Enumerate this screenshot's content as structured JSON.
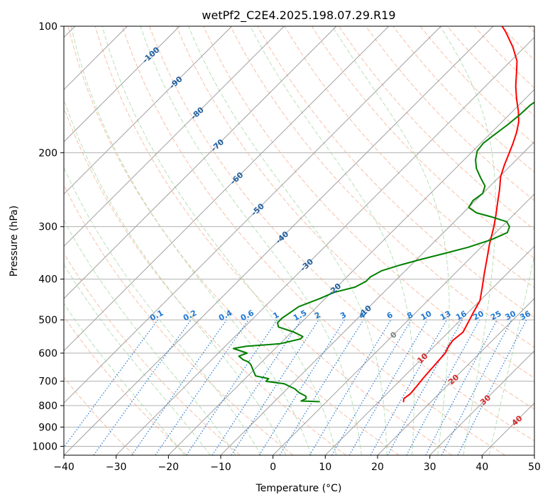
{
  "chart_data": {
    "type": "line",
    "title": "wetPf2_C2E4.2025.198.07.29.R19",
    "xlabel": "Temperature (°C)",
    "ylabel": "Pressure (hPa)",
    "xlim": [
      -40,
      50
    ],
    "ylim": [
      1050,
      100
    ],
    "y_scale": "log",
    "grid": true,
    "x_ticks": [
      -40,
      -30,
      -20,
      -10,
      0,
      10,
      20,
      30,
      40,
      50
    ],
    "y_ticks": [
      100,
      200,
      300,
      400,
      500,
      600,
      700,
      800,
      900,
      1000
    ],
    "colors": {
      "temperature": "#ff0000",
      "dewpoint": "#008000",
      "isotherm": "#a0a0a0",
      "dry_adiabat": "#f4a582",
      "moist_adiabat": "#a6d8a6",
      "mixing_ratio": "#1f77d4",
      "isotherm_label_negative": "#1f5fa0",
      "isotherm_label_positive": "#d62728"
    },
    "isotherm_labels": [
      {
        "t": -100,
        "p": 117,
        "text": "-100"
      },
      {
        "t": -90,
        "p": 136,
        "text": "-90"
      },
      {
        "t": -80,
        "p": 161,
        "text": "-80"
      },
      {
        "t": -70,
        "p": 192,
        "text": "-70"
      },
      {
        "t": -60,
        "p": 230,
        "text": "-60"
      },
      {
        "t": -50,
        "p": 273,
        "text": "-50"
      },
      {
        "t": -40,
        "p": 318,
        "text": "-40"
      },
      {
        "t": -30,
        "p": 370,
        "text": "-30"
      },
      {
        "t": -20,
        "p": 423,
        "text": "-20"
      },
      {
        "t": -10,
        "p": 477,
        "text": "-10"
      },
      {
        "t": 0,
        "p": 543,
        "text": "0"
      },
      {
        "t": 10,
        "p": 617,
        "text": "10"
      },
      {
        "t": 20,
        "p": 693,
        "text": "20"
      },
      {
        "t": 30,
        "p": 775,
        "text": "30"
      },
      {
        "t": 40,
        "p": 868,
        "text": "40"
      }
    ],
    "mixing_ratio_labels": [
      "0.1",
      "0.2",
      "0.4",
      "0.6",
      "1",
      "1.5",
      "2",
      "3",
      "4",
      "6",
      "8",
      "10",
      "13",
      "16",
      "20",
      "25",
      "30",
      "36"
    ],
    "series": [
      {
        "name": "Temperature",
        "points": [
          [
            14.8,
            785
          ],
          [
            14.2,
            770
          ],
          [
            14.5,
            750
          ],
          [
            14.3,
            720
          ],
          [
            14.0,
            690
          ],
          [
            13.8,
            660
          ],
          [
            13.6,
            630
          ],
          [
            13.4,
            600
          ],
          [
            12.8,
            580
          ],
          [
            12.4,
            560
          ],
          [
            12.8,
            535
          ],
          [
            12.0,
            510
          ],
          [
            11.0,
            480
          ],
          [
            10.0,
            450
          ],
          [
            8.0,
            420
          ],
          [
            5.8,
            390
          ],
          [
            3.5,
            360
          ],
          [
            1.0,
            330
          ],
          [
            -1.5,
            300
          ],
          [
            -3.5,
            280
          ],
          [
            -5.5,
            262
          ],
          [
            -7.5,
            245
          ],
          [
            -9.8,
            228
          ],
          [
            -11.3,
            214
          ],
          [
            -12.5,
            202
          ],
          [
            -13.8,
            190
          ],
          [
            -15.2,
            179
          ],
          [
            -16.8,
            169
          ],
          [
            -19.0,
            159
          ],
          [
            -21.6,
            149
          ],
          [
            -24.2,
            139
          ],
          [
            -26.4,
            130
          ],
          [
            -28.8,
            121
          ],
          [
            -32.3,
            112
          ],
          [
            -36.6,
            103
          ],
          [
            -38.3,
            100
          ]
        ]
      },
      {
        "name": "Dewpoint",
        "points": [
          [
            -1.3,
            783
          ],
          [
            -5.0,
            780
          ],
          [
            -4.5,
            770
          ],
          [
            -5.0,
            760
          ],
          [
            -7.0,
            745
          ],
          [
            -8.5,
            730
          ],
          [
            -11.5,
            710
          ],
          [
            -15.5,
            700
          ],
          [
            -15.5,
            690
          ],
          [
            -18.5,
            680
          ],
          [
            -20.0,
            660
          ],
          [
            -21.5,
            640
          ],
          [
            -22.5,
            630
          ],
          [
            -24.0,
            622
          ],
          [
            -25.5,
            610
          ],
          [
            -24.5,
            600
          ],
          [
            -28.0,
            585
          ],
          [
            -26.0,
            578
          ],
          [
            -20.0,
            570
          ],
          [
            -17.0,
            555
          ],
          [
            -17.0,
            548
          ],
          [
            -19.5,
            535
          ],
          [
            -23.5,
            520
          ],
          [
            -24.5,
            508
          ],
          [
            -24.5,
            495
          ],
          [
            -24.0,
            480
          ],
          [
            -23.5,
            465
          ],
          [
            -21.0,
            445
          ],
          [
            -19.5,
            430
          ],
          [
            -16.5,
            418
          ],
          [
            -15.5,
            405
          ],
          [
            -15.5,
            395
          ],
          [
            -14.5,
            382
          ],
          [
            -12.0,
            370
          ],
          [
            -9.5,
            360
          ],
          [
            -6.0,
            348
          ],
          [
            -2.5,
            336
          ],
          [
            0.5,
            322
          ],
          [
            2.2,
            310
          ],
          [
            1.5,
            300
          ],
          [
            0.0,
            292
          ],
          [
            -4.0,
            284
          ],
          [
            -7.5,
            278
          ],
          [
            -10.0,
            270
          ],
          [
            -10.5,
            260
          ],
          [
            -10.0,
            250
          ],
          [
            -11.0,
            240
          ],
          [
            -13.5,
            229
          ],
          [
            -16.0,
            218
          ],
          [
            -17.8,
            208
          ],
          [
            -19.2,
            198
          ],
          [
            -19.5,
            190
          ],
          [
            -19.0,
            181
          ],
          [
            -18.4,
            172
          ],
          [
            -18.0,
            163
          ],
          [
            -17.8,
            154
          ],
          [
            -16.9,
            146
          ],
          [
            -15.9,
            138
          ],
          [
            -14.3,
            130
          ],
          [
            -12.8,
            122
          ],
          [
            -12.6,
            114
          ],
          [
            -13.6,
            108
          ],
          [
            -15.6,
            102
          ],
          [
            -16.5,
            100
          ]
        ]
      }
    ]
  }
}
